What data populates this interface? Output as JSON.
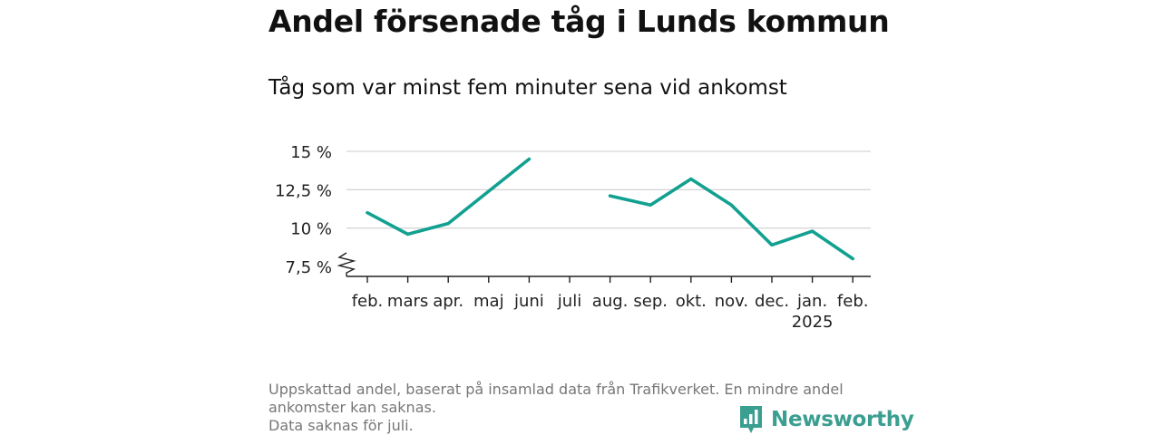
{
  "header": {
    "title": "Andel försenade tåg i Lunds kommun",
    "subtitle": "Tåg som var minst fem minuter sena vid ankomst"
  },
  "chart_data": {
    "type": "line",
    "title": "Andel försenade tåg i Lunds kommun",
    "subtitle": "Tåg som var minst fem minuter sena vid ankomst",
    "categories": [
      "feb.",
      "mars",
      "apr.",
      "maj",
      "juni",
      "juli",
      "aug.",
      "sep.",
      "okt.",
      "nov.",
      "dec.",
      "jan.",
      "feb."
    ],
    "x_sublabels": {
      "11": "2025"
    },
    "series": [
      {
        "values": [
          11.0,
          9.6,
          10.3,
          12.4,
          14.5,
          null,
          12.1,
          11.5,
          13.2,
          11.5,
          8.9,
          9.8,
          8.0
        ],
        "color": "#12a090"
      }
    ],
    "y_ticks": [
      7.5,
      10,
      12.5,
      15
    ],
    "y_tick_labels": [
      "7,5 %",
      "10 %",
      "12,5 %",
      "15 %"
    ],
    "ylim": [
      7.5,
      15
    ],
    "y_axis_break": true,
    "grid": "horizontal",
    "legend": "none"
  },
  "footer": {
    "note_line1": "Uppskattad andel, baserat på insamlad data från Trafikverket. En mindre andel ankomster kan saknas.",
    "note_line2": "Data saknas för juli.",
    "brand": "Newsworthy",
    "brand_color": "#3a9e90",
    "brand_icon": "bar-chart-speech-bubble-icon"
  }
}
